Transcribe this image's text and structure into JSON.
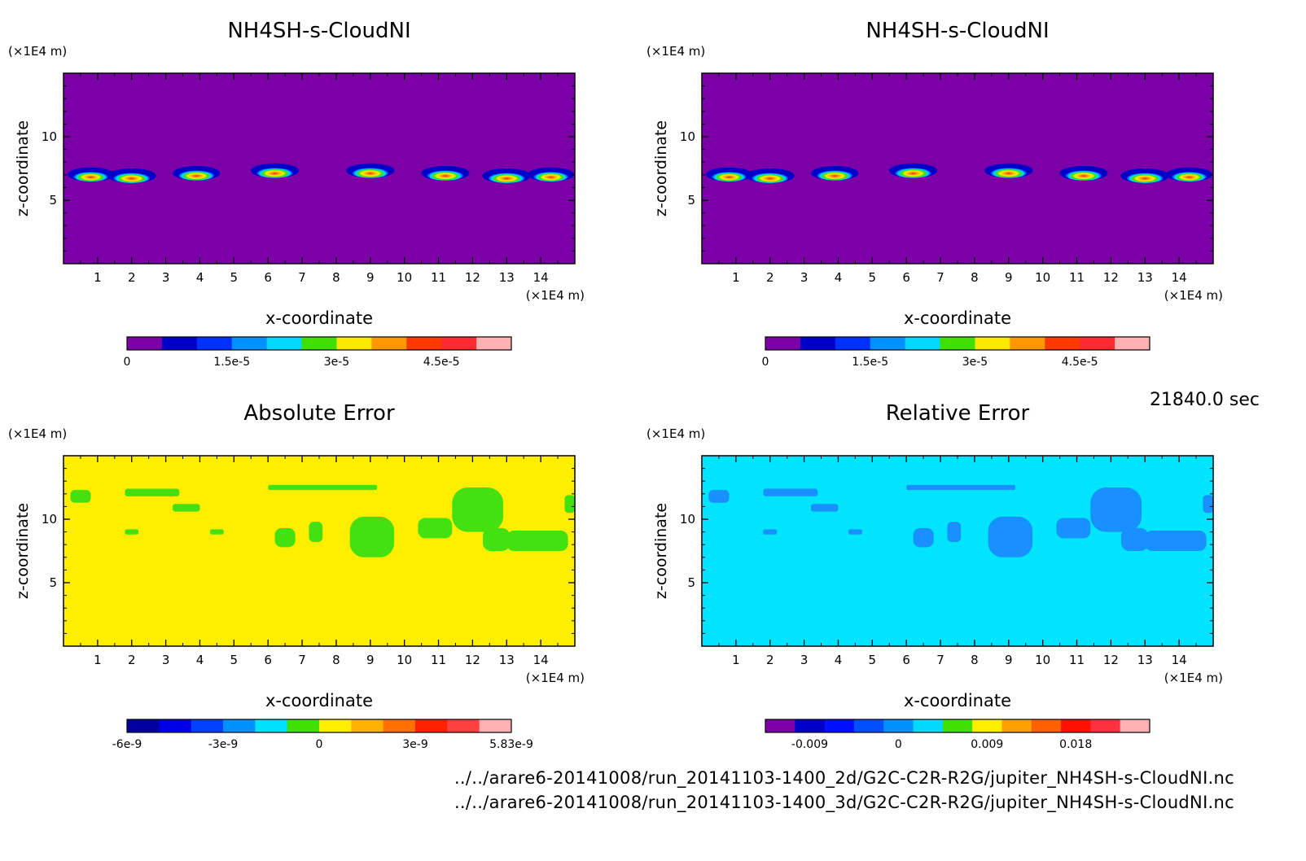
{
  "time_label": "21840.0 sec",
  "footer": {
    "file_2d": "../../arare6-20141008/run_20141103-1400_2d/G2C-C2R-R2G/jupiter_NH4SH-s-CloudNI.nc",
    "file_3d": "../../arare6-20141008/run_20141103-1400_3d/G2C-C2R-R2G/jupiter_NH4SH-s-CloudNI.nc"
  },
  "chart_data": [
    {
      "type": "heatmap",
      "title": "NH4SH-s-CloudNI",
      "xlabel": "x-coordinate",
      "ylabel": "z-coordinate",
      "x_unit": "(×1E4 m)",
      "y_unit": "(×1E4 m)",
      "xlim": [
        0,
        15
      ],
      "ylim": [
        0,
        15
      ],
      "xticks": [
        "1",
        "2",
        "3",
        "4",
        "5",
        "6",
        "7",
        "8",
        "9",
        "10",
        "11",
        "12",
        "13",
        "14"
      ],
      "yticks": [
        "5",
        "10"
      ],
      "background_color": "#7b00a8",
      "features": [
        {
          "x": 0.8,
          "z": 6.9,
          "peak": 0.8
        },
        {
          "x": 2.0,
          "z": 6.8,
          "peak": 1.0
        },
        {
          "x": 3.9,
          "z": 7.0,
          "peak": 0.9
        },
        {
          "x": 6.2,
          "z": 7.2,
          "peak": 0.95
        },
        {
          "x": 9.0,
          "z": 7.2,
          "peak": 0.95
        },
        {
          "x": 11.2,
          "z": 7.0,
          "peak": 0.95
        },
        {
          "x": 13.0,
          "z": 6.8,
          "peak": 1.0
        },
        {
          "x": 14.3,
          "z": 6.9,
          "peak": 0.8
        }
      ],
      "colorbar": {
        "colors": [
          "#7b00a8",
          "#0000c8",
          "#0030ff",
          "#0090ff",
          "#00d8ff",
          "#40e000",
          "#ffe800",
          "#ff9800",
          "#ff3800",
          "#ff2830",
          "#ffb0b0"
        ],
        "labels": [
          "0",
          "1.5e-5",
          "3e-5",
          "4.5e-5"
        ],
        "label_positions": [
          0,
          3,
          6,
          9
        ]
      }
    },
    {
      "type": "heatmap",
      "title": "NH4SH-s-CloudNI",
      "xlabel": "x-coordinate",
      "ylabel": "z-coordinate",
      "x_unit": "(×1E4 m)",
      "y_unit": "(×1E4 m)",
      "xlim": [
        0,
        15
      ],
      "ylim": [
        0,
        15
      ],
      "xticks": [
        "1",
        "2",
        "3",
        "4",
        "5",
        "6",
        "7",
        "8",
        "9",
        "10",
        "11",
        "12",
        "13",
        "14"
      ],
      "yticks": [
        "5",
        "10"
      ],
      "background_color": "#7b00a8",
      "features": [
        {
          "x": 0.8,
          "z": 6.9,
          "peak": 0.8
        },
        {
          "x": 2.0,
          "z": 6.8,
          "peak": 1.0
        },
        {
          "x": 3.9,
          "z": 7.0,
          "peak": 0.9
        },
        {
          "x": 6.2,
          "z": 7.2,
          "peak": 0.95
        },
        {
          "x": 9.0,
          "z": 7.2,
          "peak": 0.95
        },
        {
          "x": 11.2,
          "z": 7.0,
          "peak": 0.95
        },
        {
          "x": 13.0,
          "z": 6.8,
          "peak": 1.0
        },
        {
          "x": 14.3,
          "z": 6.9,
          "peak": 0.8
        }
      ],
      "colorbar": {
        "colors": [
          "#7b00a8",
          "#0000c8",
          "#0030ff",
          "#0090ff",
          "#00d8ff",
          "#40e000",
          "#ffe800",
          "#ff9800",
          "#ff3800",
          "#ff2830",
          "#ffb0b0"
        ],
        "labels": [
          "0",
          "1.5e-5",
          "3e-5",
          "4.5e-5"
        ],
        "label_positions": [
          0,
          3,
          6,
          9
        ]
      }
    },
    {
      "type": "heatmap",
      "title": "Absolute Error",
      "xlabel": "x-coordinate",
      "ylabel": "z-coordinate",
      "x_unit": "(×1E4 m)",
      "y_unit": "(×1E4 m)",
      "xlim": [
        0,
        15
      ],
      "ylim": [
        0,
        15
      ],
      "xticks": [
        "1",
        "2",
        "3",
        "4",
        "5",
        "6",
        "7",
        "8",
        "9",
        "10",
        "11",
        "12",
        "13",
        "14"
      ],
      "yticks": [
        "5",
        "10"
      ],
      "background_color": "#ffee00",
      "patch_color": "#44e010",
      "patches": [
        {
          "x": 0.2,
          "z": 11.3,
          "w": 0.6,
          "h": 1.0
        },
        {
          "x": 1.8,
          "z": 11.8,
          "w": 1.6,
          "h": 0.6
        },
        {
          "x": 3.2,
          "z": 10.6,
          "w": 0.8,
          "h": 0.6
        },
        {
          "x": 1.8,
          "z": 8.8,
          "w": 0.4,
          "h": 0.4
        },
        {
          "x": 4.3,
          "z": 8.8,
          "w": 0.4,
          "h": 0.4
        },
        {
          "x": 6.0,
          "z": 12.3,
          "w": 3.2,
          "h": 0.4
        },
        {
          "x": 6.2,
          "z": 7.8,
          "w": 0.6,
          "h": 1.5
        },
        {
          "x": 7.2,
          "z": 8.2,
          "w": 0.4,
          "h": 1.6
        },
        {
          "x": 8.4,
          "z": 7.0,
          "w": 1.3,
          "h": 3.2
        },
        {
          "x": 10.4,
          "z": 8.5,
          "w": 1.0,
          "h": 1.6
        },
        {
          "x": 11.4,
          "z": 9.0,
          "w": 1.5,
          "h": 3.5
        },
        {
          "x": 12.3,
          "z": 7.5,
          "w": 0.8,
          "h": 1.8
        },
        {
          "x": 13.0,
          "z": 7.5,
          "w": 1.8,
          "h": 1.6
        },
        {
          "x": 14.7,
          "z": 10.5,
          "w": 0.3,
          "h": 1.4
        }
      ],
      "colorbar": {
        "colors": [
          "#0000a0",
          "#0000e8",
          "#0040ff",
          "#0090ff",
          "#00e0ff",
          "#40e000",
          "#ffee00",
          "#ffb000",
          "#ff7000",
          "#ff2000",
          "#ff4040",
          "#ffb0b0"
        ],
        "labels": [
          "-6e-9",
          "-3e-9",
          "0",
          "3e-9",
          "5.83e-9"
        ],
        "label_positions": [
          0,
          3,
          6,
          9,
          12
        ]
      }
    },
    {
      "type": "heatmap",
      "title": "Relative Error",
      "xlabel": "x-coordinate",
      "ylabel": "z-coordinate",
      "x_unit": "(×1E4 m)",
      "y_unit": "(×1E4 m)",
      "xlim": [
        0,
        15
      ],
      "ylim": [
        0,
        15
      ],
      "xticks": [
        "1",
        "2",
        "3",
        "4",
        "5",
        "6",
        "7",
        "8",
        "9",
        "10",
        "11",
        "12",
        "13",
        "14"
      ],
      "yticks": [
        "5",
        "10"
      ],
      "background_color": "#00e4ff",
      "patch_color": "#1890ff",
      "patches": [
        {
          "x": 0.2,
          "z": 11.3,
          "w": 0.6,
          "h": 1.0
        },
        {
          "x": 1.8,
          "z": 11.8,
          "w": 1.6,
          "h": 0.6
        },
        {
          "x": 3.2,
          "z": 10.6,
          "w": 0.8,
          "h": 0.6
        },
        {
          "x": 1.8,
          "z": 8.8,
          "w": 0.4,
          "h": 0.4
        },
        {
          "x": 4.3,
          "z": 8.8,
          "w": 0.4,
          "h": 0.4
        },
        {
          "x": 6.0,
          "z": 12.3,
          "w": 3.2,
          "h": 0.4
        },
        {
          "x": 6.2,
          "z": 7.8,
          "w": 0.6,
          "h": 1.5
        },
        {
          "x": 7.2,
          "z": 8.2,
          "w": 0.4,
          "h": 1.6
        },
        {
          "x": 8.4,
          "z": 7.0,
          "w": 1.3,
          "h": 3.2
        },
        {
          "x": 10.4,
          "z": 8.5,
          "w": 1.0,
          "h": 1.6
        },
        {
          "x": 11.4,
          "z": 9.0,
          "w": 1.5,
          "h": 3.5
        },
        {
          "x": 12.3,
          "z": 7.5,
          "w": 0.8,
          "h": 1.8
        },
        {
          "x": 13.0,
          "z": 7.5,
          "w": 1.8,
          "h": 1.6
        },
        {
          "x": 14.7,
          "z": 10.5,
          "w": 0.3,
          "h": 1.4
        }
      ],
      "colorbar": {
        "colors": [
          "#7b00a8",
          "#0000c8",
          "#0010ff",
          "#0050ff",
          "#0090ff",
          "#00d8ff",
          "#40e000",
          "#ffee00",
          "#ffa000",
          "#ff6000",
          "#ff1000",
          "#ff3040",
          "#ffb0b0"
        ],
        "labels": [
          "-0.009",
          "0",
          "0.009",
          "0.018"
        ],
        "label_positions": [
          1.5,
          4.5,
          7.5,
          10.5
        ]
      }
    }
  ]
}
